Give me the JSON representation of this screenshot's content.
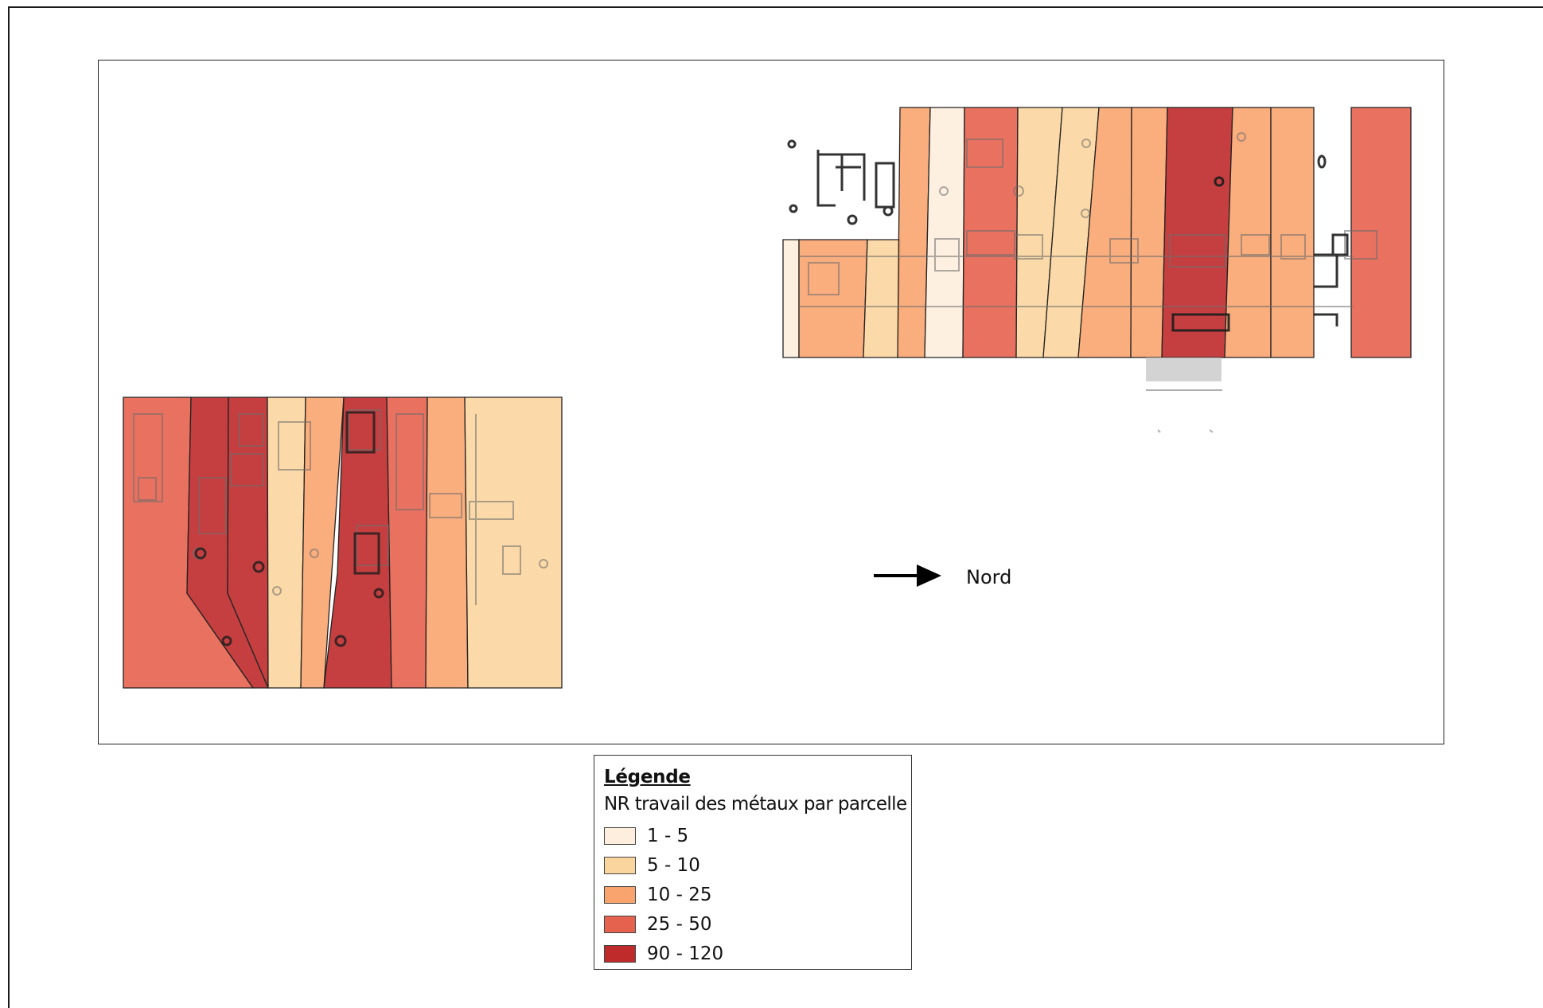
{
  "north_label": "Nord",
  "legend": {
    "title": "Légende",
    "subtitle": "NR travail des métaux par parcelle",
    "classes": [
      {
        "label": "1 - 5",
        "color": "#fdeedd"
      },
      {
        "label": "5 - 10",
        "color": "#fbd59e"
      },
      {
        "label": "10 - 25",
        "color": "#f9a46f"
      },
      {
        "label": "25 - 50",
        "color": "#e5624f"
      },
      {
        "label": "90 - 120",
        "color": "#bf2a2b"
      }
    ]
  },
  "icons": {
    "north_arrow": "arrow-right-icon"
  }
}
